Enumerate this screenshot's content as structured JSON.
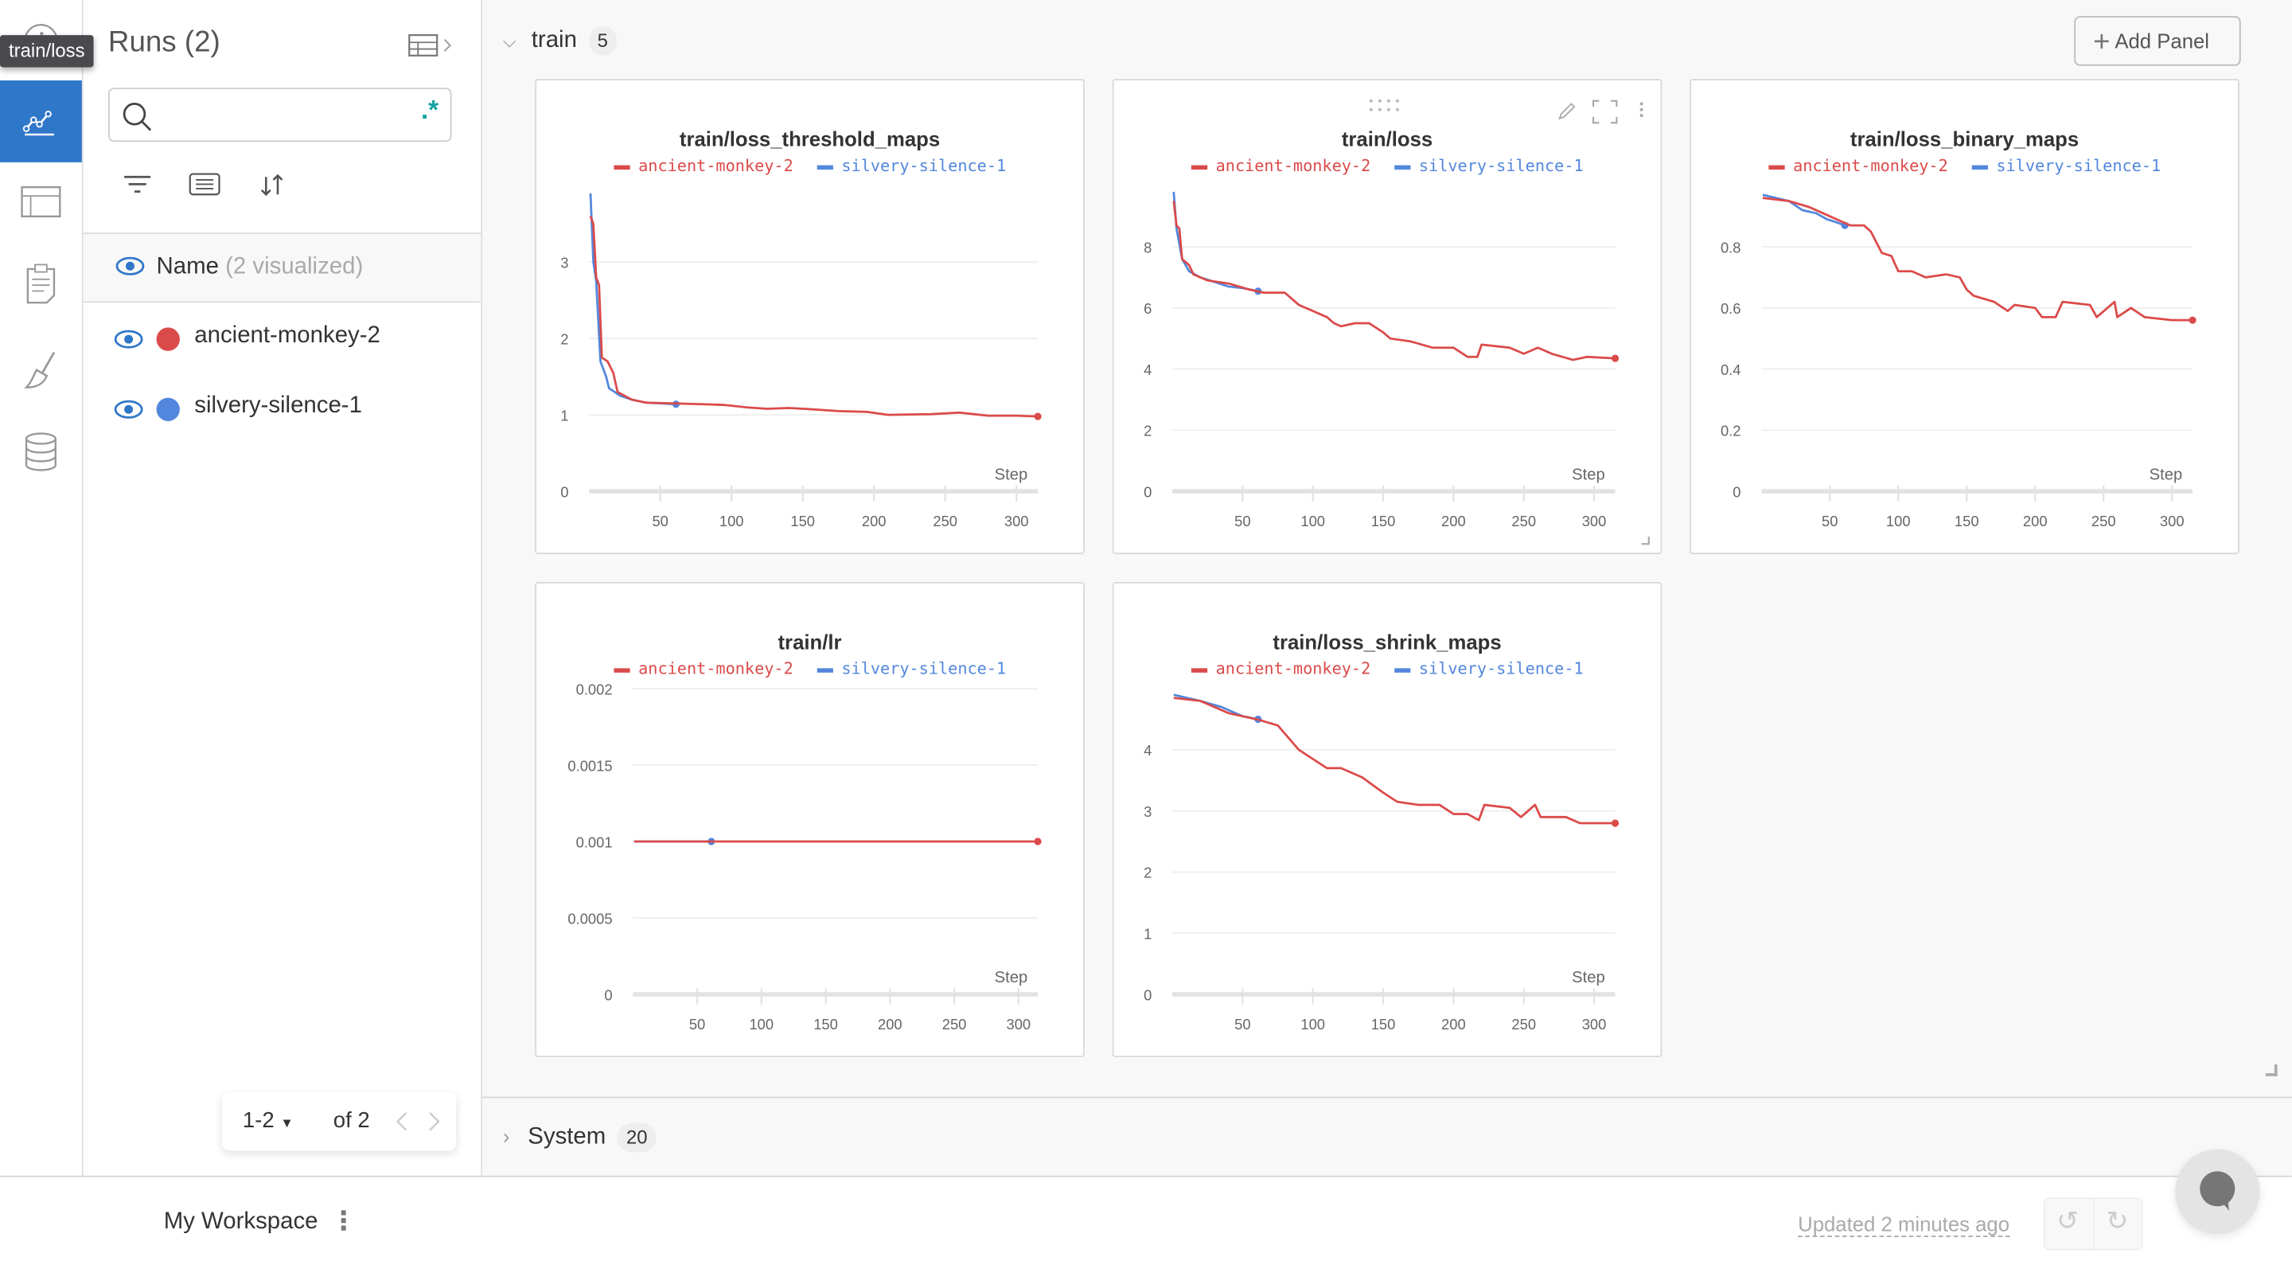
{
  "tooltip": "train/loss",
  "rail": {
    "items": [
      {
        "icon": "info-icon"
      },
      {
        "icon": "line-chart-icon",
        "active": true
      },
      {
        "icon": "table-icon"
      },
      {
        "icon": "clipboard-icon"
      },
      {
        "icon": "broom-icon"
      },
      {
        "icon": "database-icon"
      }
    ]
  },
  "runs": {
    "title": "Runs (2)",
    "search": {
      "value": "",
      "placeholder": "",
      "regex_label": ".*"
    },
    "header": {
      "label": "Name",
      "count": "(2 visualized)"
    },
    "items": [
      {
        "name": "ancient-monkey-2",
        "color": "#db4a4a"
      },
      {
        "name": "silvery-silence-1",
        "color": "#5387dd"
      }
    ],
    "pager": {
      "range": "1-2",
      "of": "of 2"
    }
  },
  "sections": {
    "train": {
      "label": "train",
      "count": "5",
      "add_panel": "Add Panel"
    },
    "system": {
      "label": "System",
      "count": "20"
    }
  },
  "footer": {
    "workspace": "My Workspace",
    "updated": "Updated 2 minutes ago"
  },
  "colors": {
    "accent": "#2f77c9",
    "red": "#db4a4a",
    "blue": "#5387dd"
  },
  "chart_data": [
    {
      "type": "line",
      "title": "train/loss_threshold_maps",
      "xlabel": "Step",
      "xticks": [
        50,
        100,
        150,
        200,
        250,
        300
      ],
      "yticks": [
        "0",
        "1",
        "2",
        "3"
      ],
      "ytickvals": [
        0,
        1,
        2,
        3
      ],
      "ylim": [
        0,
        4
      ],
      "xlim": [
        0,
        315
      ],
      "grid": true,
      "legend": "top",
      "series": [
        {
          "name": "ancient-monkey-2",
          "color": "#db4a4a",
          "points": [
            [
              1,
              3.6
            ],
            [
              3,
              3.5
            ],
            [
              5,
              2.8
            ],
            [
              7,
              2.7
            ],
            [
              9,
              1.75
            ],
            [
              13,
              1.7
            ],
            [
              17,
              1.55
            ],
            [
              20,
              1.3
            ],
            [
              25,
              1.25
            ],
            [
              30,
              1.2
            ],
            [
              40,
              1.16
            ],
            [
              60,
              1.15
            ],
            [
              80,
              1.14
            ],
            [
              95,
              1.13
            ],
            [
              110,
              1.1
            ],
            [
              125,
              1.08
            ],
            [
              140,
              1.09
            ],
            [
              160,
              1.07
            ],
            [
              175,
              1.05
            ],
            [
              195,
              1.04
            ],
            [
              210,
              1.0
            ],
            [
              240,
              1.01
            ],
            [
              260,
              1.03
            ],
            [
              280,
              0.99
            ],
            [
              300,
              0.99
            ],
            [
              315,
              0.98
            ]
          ]
        },
        {
          "name": "silvery-silence-1",
          "color": "#5387dd",
          "points": [
            [
              1,
              3.9
            ],
            [
              3,
              3.0
            ],
            [
              5,
              2.75
            ],
            [
              8,
              1.7
            ],
            [
              12,
              1.5
            ],
            [
              14,
              1.35
            ],
            [
              18,
              1.3
            ],
            [
              22,
              1.25
            ],
            [
              30,
              1.2
            ],
            [
              40,
              1.16
            ],
            [
              61,
              1.14
            ]
          ]
        }
      ]
    },
    {
      "type": "line",
      "title": "train/loss",
      "xlabel": "Step",
      "xticks": [
        50,
        100,
        150,
        200,
        250,
        300
      ],
      "yticks": [
        "0",
        "2",
        "4",
        "6",
        "8"
      ],
      "ytickvals": [
        0,
        2,
        4,
        6,
        8
      ],
      "ylim": [
        0,
        10
      ],
      "xlim": [
        0,
        315
      ],
      "grid": true,
      "legend": "top",
      "series": [
        {
          "name": "ancient-monkey-2",
          "color": "#db4a4a",
          "points": [
            [
              1,
              9.5
            ],
            [
              3,
              8.7
            ],
            [
              5,
              8.6
            ],
            [
              7,
              7.6
            ],
            [
              12,
              7.4
            ],
            [
              15,
              7.1
            ],
            [
              25,
              6.9
            ],
            [
              40,
              6.8
            ],
            [
              55,
              6.6
            ],
            [
              65,
              6.5
            ],
            [
              80,
              6.5
            ],
            [
              90,
              6.1
            ],
            [
              100,
              5.9
            ],
            [
              110,
              5.7
            ],
            [
              115,
              5.5
            ],
            [
              120,
              5.4
            ],
            [
              130,
              5.5
            ],
            [
              140,
              5.5
            ],
            [
              150,
              5.2
            ],
            [
              155,
              5.0
            ],
            [
              170,
              4.9
            ],
            [
              185,
              4.7
            ],
            [
              200,
              4.7
            ],
            [
              210,
              4.4
            ],
            [
              217,
              4.4
            ],
            [
              220,
              4.8
            ],
            [
              240,
              4.7
            ],
            [
              250,
              4.5
            ],
            [
              260,
              4.7
            ],
            [
              270,
              4.5
            ],
            [
              285,
              4.3
            ],
            [
              295,
              4.4
            ],
            [
              315,
              4.35
            ]
          ]
        },
        {
          "name": "silvery-silence-1",
          "color": "#5387dd",
          "points": [
            [
              1,
              9.8
            ],
            [
              3,
              8.6
            ],
            [
              7,
              7.6
            ],
            [
              12,
              7.2
            ],
            [
              20,
              7.0
            ],
            [
              30,
              6.85
            ],
            [
              40,
              6.7
            ],
            [
              50,
              6.65
            ],
            [
              61,
              6.55
            ]
          ]
        }
      ]
    },
    {
      "type": "line",
      "title": "train/loss_binary_maps",
      "xlabel": "Step",
      "xticks": [
        50,
        100,
        150,
        200,
        250,
        300
      ],
      "yticks": [
        "0",
        "0.2",
        "0.4",
        "0.6",
        "0.8"
      ],
      "ytickvals": [
        0,
        0.2,
        0.4,
        0.6,
        0.8
      ],
      "ylim": [
        0,
        1
      ],
      "xlim": [
        0,
        315
      ],
      "grid": true,
      "legend": "top",
      "series": [
        {
          "name": "ancient-monkey-2",
          "color": "#db4a4a",
          "points": [
            [
              1,
              0.96
            ],
            [
              20,
              0.95
            ],
            [
              35,
              0.93
            ],
            [
              45,
              0.91
            ],
            [
              55,
              0.89
            ],
            [
              65,
              0.87
            ],
            [
              75,
              0.87
            ],
            [
              80,
              0.85
            ],
            [
              88,
              0.78
            ],
            [
              95,
              0.77
            ],
            [
              100,
              0.72
            ],
            [
              110,
              0.72
            ],
            [
              120,
              0.7
            ],
            [
              135,
              0.71
            ],
            [
              145,
              0.7
            ],
            [
              150,
              0.66
            ],
            [
              155,
              0.64
            ],
            [
              170,
              0.62
            ],
            [
              180,
              0.59
            ],
            [
              185,
              0.61
            ],
            [
              200,
              0.6
            ],
            [
              205,
              0.57
            ],
            [
              215,
              0.57
            ],
            [
              220,
              0.62
            ],
            [
              240,
              0.61
            ],
            [
              245,
              0.57
            ],
            [
              258,
              0.62
            ],
            [
              260,
              0.57
            ],
            [
              270,
              0.6
            ],
            [
              280,
              0.57
            ],
            [
              300,
              0.56
            ],
            [
              315,
              0.56
            ]
          ]
        },
        {
          "name": "silvery-silence-1",
          "color": "#5387dd",
          "points": [
            [
              1,
              0.97
            ],
            [
              20,
              0.95
            ],
            [
              30,
              0.92
            ],
            [
              40,
              0.91
            ],
            [
              48,
              0.89
            ],
            [
              55,
              0.88
            ],
            [
              61,
              0.87
            ]
          ]
        }
      ]
    },
    {
      "type": "line",
      "title": "train/lr",
      "xlabel": "Step",
      "xticks": [
        50,
        100,
        150,
        200,
        250,
        300
      ],
      "yticks": [
        "0",
        "0.0005",
        "0.001",
        "0.0015",
        "0.002"
      ],
      "ytickvals": [
        0,
        0.0005,
        0.001,
        0.0015,
        0.002
      ],
      "ylim": [
        0,
        0.002
      ],
      "xlim": [
        0,
        315
      ],
      "grid": true,
      "legend": "top",
      "series": [
        {
          "name": "ancient-monkey-2",
          "color": "#db4a4a",
          "points": [
            [
              1,
              0.001
            ],
            [
              315,
              0.001
            ]
          ]
        },
        {
          "name": "silvery-silence-1",
          "color": "#5387dd",
          "points": [
            [
              1,
              0.001
            ],
            [
              61,
              0.001
            ]
          ]
        }
      ]
    },
    {
      "type": "line",
      "title": "train/loss_shrink_maps",
      "xlabel": "Step",
      "xticks": [
        50,
        100,
        150,
        200,
        250,
        300
      ],
      "yticks": [
        "0",
        "1",
        "2",
        "3",
        "4"
      ],
      "ytickvals": [
        0,
        1,
        2,
        3,
        4
      ],
      "ylim": [
        0,
        5
      ],
      "xlim": [
        0,
        315
      ],
      "grid": true,
      "legend": "top",
      "series": [
        {
          "name": "ancient-monkey-2",
          "color": "#db4a4a",
          "points": [
            [
              1,
              4.85
            ],
            [
              20,
              4.8
            ],
            [
              40,
              4.6
            ],
            [
              60,
              4.5
            ],
            [
              75,
              4.4
            ],
            [
              90,
              4.0
            ],
            [
              100,
              3.85
            ],
            [
              110,
              3.7
            ],
            [
              120,
              3.7
            ],
            [
              135,
              3.55
            ],
            [
              150,
              3.3
            ],
            [
              160,
              3.15
            ],
            [
              175,
              3.1
            ],
            [
              190,
              3.1
            ],
            [
              200,
              2.95
            ],
            [
              210,
              2.95
            ],
            [
              218,
              2.85
            ],
            [
              222,
              3.1
            ],
            [
              240,
              3.05
            ],
            [
              248,
              2.9
            ],
            [
              258,
              3.1
            ],
            [
              262,
              2.9
            ],
            [
              280,
              2.9
            ],
            [
              290,
              2.8
            ],
            [
              315,
              2.8
            ]
          ]
        },
        {
          "name": "silvery-silence-1",
          "color": "#5387dd",
          "points": [
            [
              1,
              4.9
            ],
            [
              20,
              4.8
            ],
            [
              35,
              4.7
            ],
            [
              50,
              4.55
            ],
            [
              61,
              4.5
            ]
          ]
        }
      ]
    }
  ]
}
